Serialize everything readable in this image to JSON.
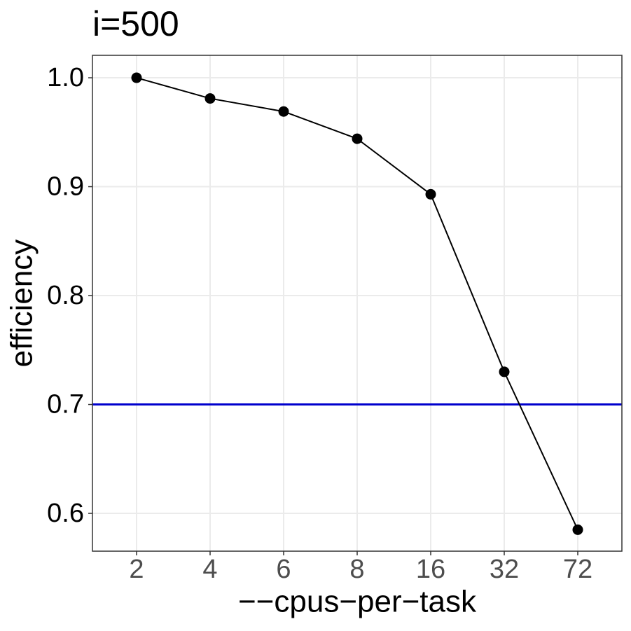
{
  "chart_data": {
    "type": "line",
    "title": "i=500",
    "x_label": "−−cpus−per−task",
    "y_label": "efficiency",
    "categories": [
      "2",
      "4",
      "6",
      "8",
      "16",
      "32",
      "72"
    ],
    "values": [
      1.0,
      0.981,
      0.969,
      0.944,
      0.893,
      0.73,
      0.585
    ],
    "color": "#000000",
    "hline": {
      "value": 0.7,
      "color": "#0000cd"
    },
    "ylim": [
      0.5653,
      1.0206
    ],
    "yticks": [
      0.6,
      0.7,
      0.8,
      0.9,
      {
        "value": 1.0,
        "label": "1.0"
      }
    ],
    "grid": true
  }
}
